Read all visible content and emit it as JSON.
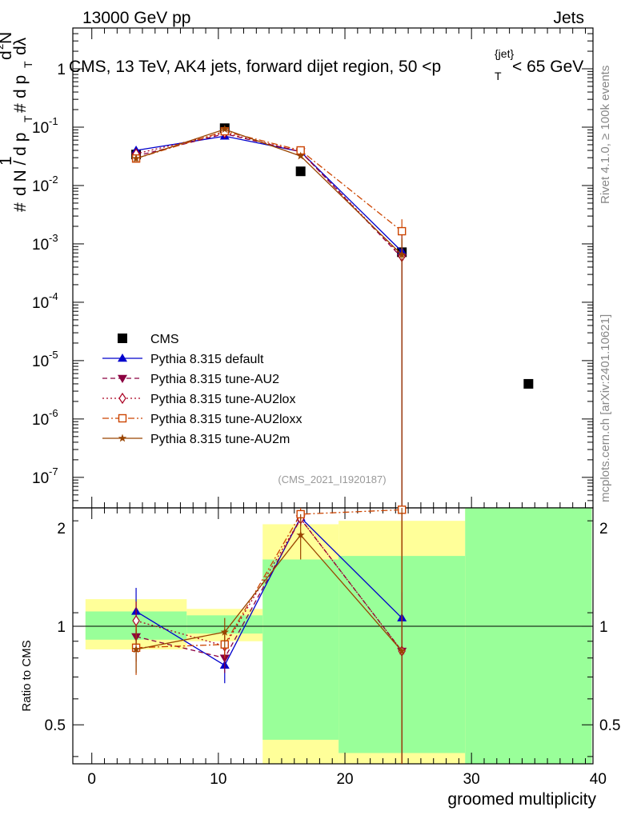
{
  "header": {
    "left": "13000 GeV pp",
    "right": "Jets",
    "side_top": "Rivet 4.1.0, ≥ 100k events",
    "side_bottom": "mcplots.cern.ch [arXiv:2401.10621]"
  },
  "chart_data": [
    {
      "type": "scatter",
      "panel": "main",
      "title_parts": [
        "CMS, 13 TeV, AK4 jets, forward dijet region, 50 <p",
        "T",
        "{jet}",
        "< 65 GeV"
      ],
      "ylabel_parts": {
        "sup_n": "2",
        "one": "1",
        "hash": "#",
        "frac_den": "d N / d p",
        "T": "T",
        "d2N": "d",
        "N": "N",
        "dpT": "d p",
        "dl": "dλ"
      },
      "xlim": [
        -1.5,
        39.6
      ],
      "ylim_log": [
        3e-08,
        5
      ],
      "yscale": "log",
      "ytick_labels": [
        "1",
        "10",
        "10",
        "10",
        "10",
        "10",
        "10",
        "10"
      ],
      "ytick_exps": [
        "",
        "-1",
        "-2",
        "-3",
        "-4",
        "-5",
        "-6",
        "-7"
      ],
      "watermark": "(CMS_2021_I1920187)",
      "series": [
        {
          "name": "CMS",
          "x": [
            3.5,
            10.5,
            16.5,
            24.5,
            34.5
          ],
          "y": [
            0.034,
            0.096,
            0.0175,
            0.00072,
            4e-06
          ],
          "color": "#000000",
          "marker": "square-filled",
          "line": "none"
        },
        {
          "name": "Pythia 8.315 default",
          "x": [
            3.5,
            10.5,
            16.5,
            24.5
          ],
          "y": [
            0.04,
            0.07,
            0.038,
            0.00074
          ],
          "yerr_rel": [
            0.12,
            0.05,
            0.06,
            0.9
          ],
          "color": "#0000cc",
          "marker": "triangle-up-filled",
          "line": "solid"
        },
        {
          "name": "Pythia 8.315 tune-AU2",
          "x": [
            3.5,
            10.5,
            16.5,
            24.5
          ],
          "y": [
            0.032,
            0.077,
            0.038,
            0.00058
          ],
          "yerr_rel": [
            0.12,
            0.05,
            0.06,
            0.9
          ],
          "color": "#8b0040",
          "marker": "triangle-down-filled",
          "line": "dashed"
        },
        {
          "name": "Pythia 8.315 tune-AU2lox",
          "x": [
            3.5,
            10.5,
            16.5,
            24.5
          ],
          "y": [
            0.035,
            0.08,
            0.038,
            0.00061
          ],
          "yerr_rel": [
            0.12,
            0.05,
            0.06,
            0.9
          ],
          "color": "#aa0022",
          "marker": "diamond-open",
          "line": "dotted"
        },
        {
          "name": "Pythia 8.315 tune-AU2loxx",
          "x": [
            3.5,
            10.5,
            16.5,
            24.5
          ],
          "y": [
            0.029,
            0.085,
            0.04,
            0.00165
          ],
          "yerr_rel": [
            0.12,
            0.05,
            0.06,
            0.6
          ],
          "color": "#cc4400",
          "marker": "square-open",
          "line": "dashdot"
        },
        {
          "name": "Pythia 8.315 tune-AU2m",
          "x": [
            3.5,
            10.5,
            16.5,
            24.5
          ],
          "y": [
            0.029,
            0.092,
            0.032,
            0.00065
          ],
          "yerr_rel": [
            0.12,
            0.05,
            0.06,
            0.9
          ],
          "color": "#994400",
          "marker": "star",
          "line": "solid"
        }
      ]
    },
    {
      "type": "scatter",
      "panel": "ratio",
      "ylabel": "Ratio to CMS",
      "xlabel": "groomed multiplicity",
      "xlim": [
        -1.5,
        39.6
      ],
      "ylim_log": [
        0.38,
        2.3
      ],
      "yscale": "log",
      "xticks": [
        0,
        10,
        20,
        30,
        40
      ],
      "yticks": [
        0.5,
        1,
        2
      ],
      "ytick_labels": [
        "0.5",
        "1",
        "2"
      ],
      "xtick_labels": [
        "0",
        "10",
        "20",
        "30",
        "40"
      ],
      "bands": [
        {
          "x0": -0.5,
          "x1": 7.5,
          "yellow": [
            0.85,
            1.21
          ],
          "green": [
            0.91,
            1.11
          ]
        },
        {
          "x0": 7.5,
          "x1": 13.5,
          "yellow": [
            0.9,
            1.13
          ],
          "green": [
            0.95,
            1.08
          ]
        },
        {
          "x0": 13.5,
          "x1": 19.5,
          "yellow": [
            0.35,
            2.05
          ],
          "green": [
            0.45,
            1.6
          ]
        },
        {
          "x0": 19.5,
          "x1": 29.5,
          "yellow": [
            0.35,
            2.1
          ],
          "green": [
            0.41,
            1.64
          ]
        },
        {
          "x0": 29.5,
          "x1": 39.5,
          "yellow": [
            0.35,
            2.3
          ],
          "green": [
            0.35,
            2.3
          ]
        }
      ],
      "series": [
        {
          "name": "Pythia 8.315 default",
          "x": [
            3.5,
            10.5,
            16.5,
            24.5
          ],
          "y": [
            1.11,
            0.76,
            2.15,
            1.06
          ],
          "yerr": [
            0.2,
            0.09,
            0.1,
            1.5
          ]
        },
        {
          "name": "Pythia 8.315 tune-AU2",
          "x": [
            3.5,
            10.5,
            16.5,
            24.5
          ],
          "y": [
            0.93,
            0.8,
            2.13,
            0.84
          ],
          "yerr": [
            0.15,
            0.08,
            0.1,
            1.5
          ]
        },
        {
          "name": "Pythia 8.315 tune-AU2lox",
          "x": [
            3.5,
            10.5,
            16.5,
            24.5
          ],
          "y": [
            1.04,
            0.87,
            2.13,
            0.84
          ],
          "yerr": [
            0.15,
            0.08,
            0.1,
            1.5
          ]
        },
        {
          "name": "Pythia 8.315 tune-AU2loxx",
          "x": [
            3.5,
            10.5,
            16.5,
            24.5
          ],
          "y": [
            0.86,
            0.88,
            2.2,
            2.27
          ],
          "yerr": [
            0.15,
            0.08,
            0.1,
            1.0
          ]
        },
        {
          "name": "Pythia 8.315 tune-AU2m",
          "x": [
            3.5,
            10.5,
            16.5,
            24.5
          ],
          "y": [
            0.85,
            0.96,
            1.9,
            0.84
          ],
          "yerr": [
            0.13,
            0.1,
            0.3,
            1.5
          ]
        }
      ]
    }
  ]
}
